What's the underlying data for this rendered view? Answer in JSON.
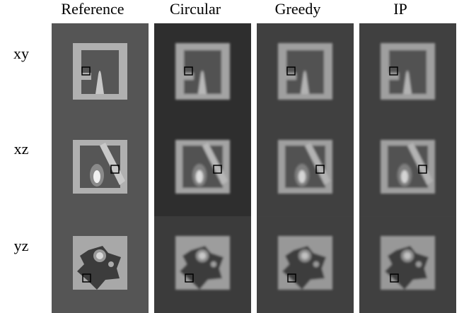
{
  "columns": [
    "Reference",
    "Circular",
    "Greedy",
    "IP"
  ],
  "rows": [
    "xy",
    "xz",
    "yz"
  ]
}
